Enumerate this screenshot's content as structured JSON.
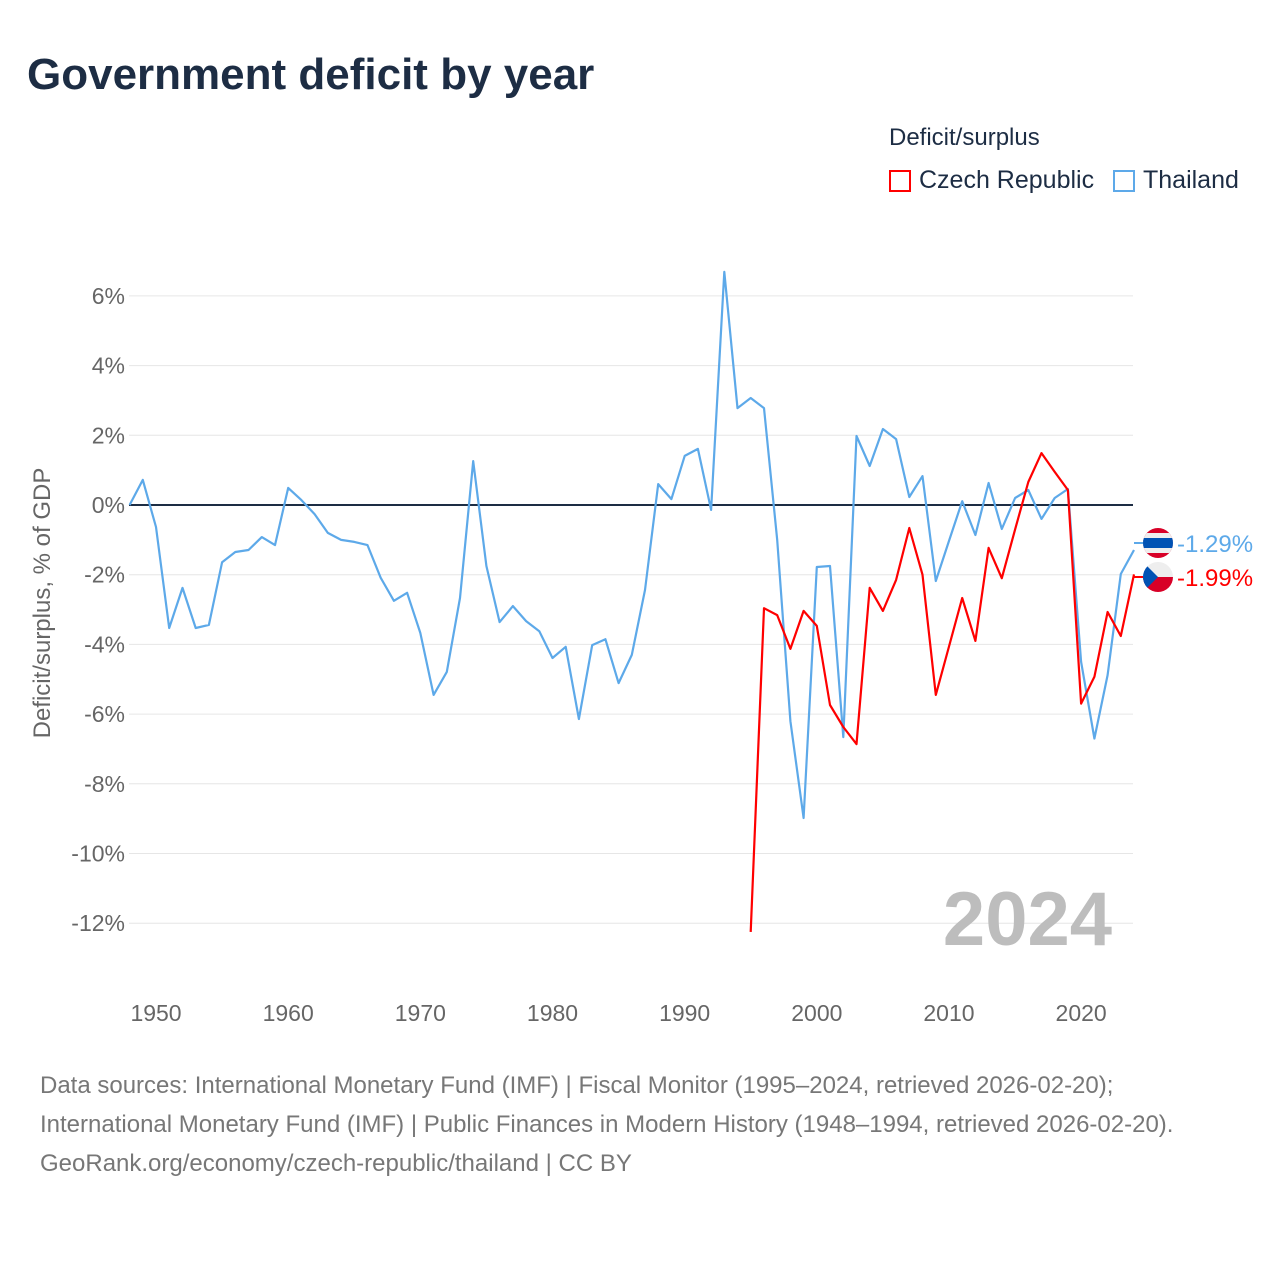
{
  "title": "Government deficit by year",
  "legend": {
    "title": "Deficit/surplus",
    "items": [
      {
        "name": "Czech Republic",
        "color": "#ff0000"
      },
      {
        "name": "Thailand",
        "color": "#5da9e9"
      }
    ]
  },
  "year_watermark": "2024",
  "footer": {
    "sources": "Data sources: International Monetary Fund (IMF) | Fiscal Monitor (1995–2024, retrieved 2026-02-20); International Monetary Fund (IMF) | Public Finances in Modern History (1948–1994, retrieved 2026-02-20).",
    "credit": "GeoRank.org/economy/czech-republic/thailand | CC BY"
  },
  "chart_data": {
    "type": "line",
    "title": "Government deficit by year",
    "xlabel": "",
    "ylabel": "Deficit/surplus, % of GDP",
    "xlim": [
      1948,
      2024
    ],
    "ylim": [
      -13,
      7
    ],
    "x_ticks": [
      1950,
      1960,
      1970,
      1980,
      1990,
      2000,
      2010,
      2020
    ],
    "x_tick_labels": [
      "1950",
      "1960",
      "1970",
      "1980",
      "1990",
      "2000",
      "2010",
      "2020"
    ],
    "y_ticks": [
      6,
      4,
      2,
      0,
      -2,
      -4,
      -6,
      -8,
      -10,
      -12
    ],
    "y_tick_labels": [
      "6%",
      "4%",
      "2%",
      "0%",
      "-2%",
      "-4%",
      "-6%",
      "-8%",
      "-10%",
      "-12%"
    ],
    "grid": true,
    "legend_position": "top-right",
    "series": [
      {
        "name": "Thailand",
        "color": "#5da9e9",
        "start_year": 1948,
        "end_label": "-1.29%",
        "values": [
          0,
          0.72,
          -0.63,
          -3.53,
          -2.38,
          -3.53,
          -3.44,
          -1.64,
          -1.35,
          -1.29,
          -0.92,
          -1.15,
          0.49,
          0.14,
          -0.26,
          -0.8,
          -1.0,
          -1.06,
          -1.15,
          -2.09,
          -2.75,
          -2.52,
          -3.67,
          -5.45,
          -4.79,
          -2.67,
          1.26,
          -1.75,
          -3.36,
          -2.9,
          -3.33,
          -3.62,
          -4.39,
          -4.07,
          -6.14,
          -4.02,
          -3.85,
          -5.11,
          -4.3,
          -2.44,
          0.6,
          0.17,
          1.41,
          1.61,
          -0.14,
          6.69,
          2.78,
          3.07,
          2.78,
          -1.0,
          -6.2,
          -8.98,
          -1.78,
          -1.75,
          -6.66,
          1.98,
          1.12,
          2.18,
          1.89,
          0.23,
          0.83,
          -2.18,
          -1.03,
          0.11,
          -0.86,
          0.63,
          -0.69,
          0.2,
          0.43,
          -0.4,
          0.2,
          0.46,
          -4.5,
          -6.7,
          -4.88,
          -1.98,
          -1.29
        ]
      },
      {
        "name": "Czech Republic",
        "color": "#ff0000",
        "start_year": 1995,
        "end_label": "-1.99%",
        "values": [
          -12.25,
          -2.96,
          -3.16,
          -4.13,
          -3.04,
          -3.47,
          -5.74,
          -6.37,
          -6.86,
          -2.38,
          -3.04,
          -2.15,
          -0.66,
          -2.0,
          -5.45,
          -4.06,
          -2.67,
          -3.9,
          -1.23,
          -2.1,
          -0.7,
          0.66,
          1.49,
          0.95,
          0.43,
          -5.7,
          -4.93,
          -3.07,
          -3.76,
          -1.99
        ]
      }
    ]
  }
}
